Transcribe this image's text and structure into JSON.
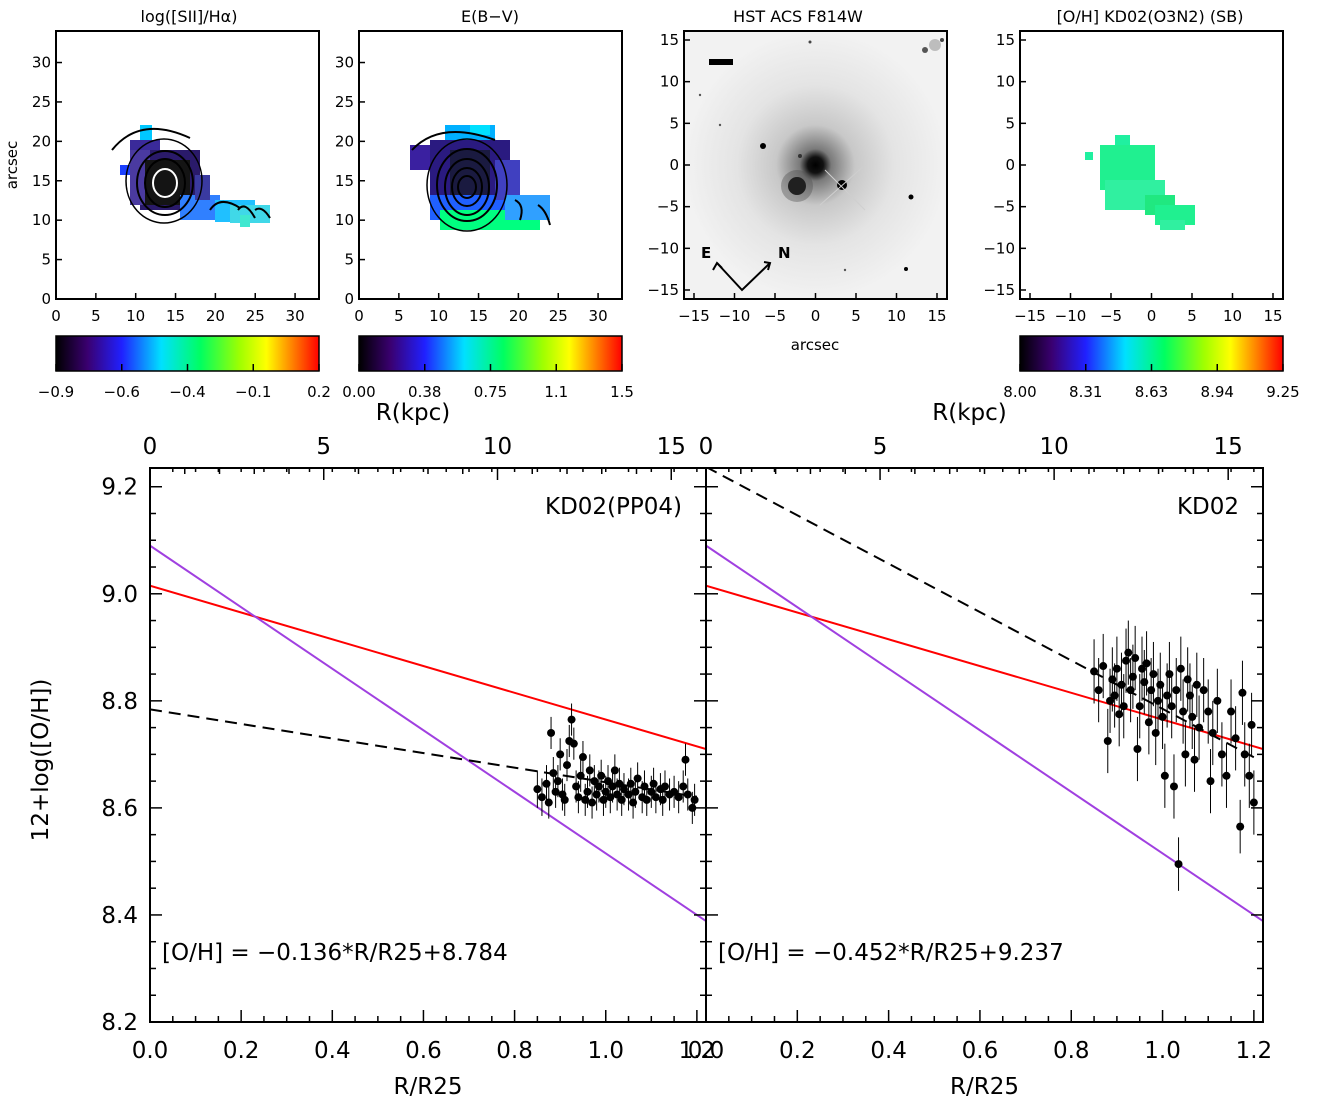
{
  "panels": {
    "sii": {
      "title": "log([SII]/Hα)",
      "ylabel": "arcsec",
      "xticks": [
        "0",
        "5",
        "10",
        "15",
        "20",
        "25",
        "30"
      ],
      "yticks": [
        "0",
        "5",
        "10",
        "15",
        "20",
        "25",
        "30"
      ],
      "colorbar_ticks": [
        "−0.9",
        "−0.6",
        "−0.4",
        "−0.1",
        "0.2"
      ]
    },
    "ebv": {
      "title": "E(B−V)",
      "xticks": [
        "0",
        "5",
        "10",
        "15",
        "20",
        "25",
        "30"
      ],
      "yticks": [
        "0",
        "5",
        "10",
        "15",
        "20",
        "25",
        "30"
      ],
      "colorbar_ticks": [
        "0.00",
        "0.38",
        "0.75",
        "1.1",
        "1.5"
      ]
    },
    "hst": {
      "title": "HST ACS F814W",
      "xlabel": "arcsec",
      "xticks": [
        "−15",
        "−10",
        "−5",
        "0",
        "5",
        "10",
        "15"
      ],
      "yticks": [
        "15",
        "10",
        "5",
        "0",
        "−5",
        "−10",
        "−15"
      ],
      "compass_e": "E",
      "compass_n": "N"
    },
    "oh": {
      "title": "[O/H] KD02(O3N2) (SB)",
      "xticks": [
        "−15",
        "−10",
        "−5",
        "0",
        "5",
        "10",
        "15"
      ],
      "yticks": [
        "15",
        "10",
        "5",
        "0",
        "−5",
        "−10",
        "−15"
      ],
      "colorbar_ticks": [
        "8.00",
        "8.31",
        "8.63",
        "8.94",
        "9.25"
      ]
    }
  },
  "chart_data": [
    {
      "type": "scatter",
      "label": "KD02(PP04)",
      "xlabel": "R/R25",
      "ylabel": "12+log([O/H])",
      "top_xlabel": "R(kpc)",
      "xlim": [
        0.0,
        1.22
      ],
      "ylim": [
        8.2,
        9.25
      ],
      "xticks": [
        "0.0",
        "0.2",
        "0.4",
        "0.6",
        "0.8",
        "1.0",
        "1.2"
      ],
      "yticks": [
        "8.2",
        "8.4",
        "8.6",
        "8.8",
        "9.0",
        "9.2"
      ],
      "top_xticks": [
        "0",
        "5",
        "10",
        "15"
      ],
      "fit_text": "[O/H] = −0.136*R/R25+8.784",
      "fit": {
        "slope": -0.136,
        "intercept": 8.784,
        "style": "dashed",
        "color": "#000000"
      },
      "reference_lines": [
        {
          "slope": -0.25,
          "intercept": 9.015,
          "color": "#ff0000"
        },
        {
          "slope": -0.575,
          "intercept": 9.09,
          "color": "#a040e0"
        }
      ],
      "points": [
        [
          0.85,
          8.635,
          0.035
        ],
        [
          0.86,
          8.62,
          0.035
        ],
        [
          0.87,
          8.645,
          0.035
        ],
        [
          0.875,
          8.61,
          0.03
        ],
        [
          0.88,
          8.74,
          0.03
        ],
        [
          0.885,
          8.665,
          0.03
        ],
        [
          0.89,
          8.63,
          0.03
        ],
        [
          0.895,
          8.65,
          0.03
        ],
        [
          0.9,
          8.7,
          0.03
        ],
        [
          0.905,
          8.625,
          0.03
        ],
        [
          0.91,
          8.615,
          0.03
        ],
        [
          0.915,
          8.68,
          0.03
        ],
        [
          0.92,
          8.725,
          0.03
        ],
        [
          0.925,
          8.765,
          0.03
        ],
        [
          0.93,
          8.72,
          0.03
        ],
        [
          0.935,
          8.64,
          0.03
        ],
        [
          0.94,
          8.62,
          0.03
        ],
        [
          0.945,
          8.66,
          0.03
        ],
        [
          0.95,
          8.695,
          0.03
        ],
        [
          0.955,
          8.615,
          0.03
        ],
        [
          0.96,
          8.63,
          0.03
        ],
        [
          0.965,
          8.67,
          0.03
        ],
        [
          0.97,
          8.61,
          0.03
        ],
        [
          0.975,
          8.65,
          0.03
        ],
        [
          0.98,
          8.625,
          0.03
        ],
        [
          0.985,
          8.64,
          0.03
        ],
        [
          0.99,
          8.66,
          0.03
        ],
        [
          0.995,
          8.615,
          0.03
        ],
        [
          1.0,
          8.63,
          0.03
        ],
        [
          1.005,
          8.65,
          0.03
        ],
        [
          1.01,
          8.62,
          0.03
        ],
        [
          1.015,
          8.64,
          0.03
        ],
        [
          1.02,
          8.67,
          0.03
        ],
        [
          1.025,
          8.625,
          0.03
        ],
        [
          1.03,
          8.645,
          0.03
        ],
        [
          1.035,
          8.615,
          0.03
        ],
        [
          1.04,
          8.635,
          0.03
        ],
        [
          1.05,
          8.625,
          0.03
        ],
        [
          1.055,
          8.645,
          0.03
        ],
        [
          1.06,
          8.61,
          0.03
        ],
        [
          1.065,
          8.63,
          0.03
        ],
        [
          1.07,
          8.655,
          0.03
        ],
        [
          1.08,
          8.62,
          0.03
        ],
        [
          1.085,
          8.64,
          0.03
        ],
        [
          1.09,
          8.615,
          0.03
        ],
        [
          1.1,
          8.63,
          0.03
        ],
        [
          1.105,
          8.645,
          0.03
        ],
        [
          1.11,
          8.62,
          0.03
        ],
        [
          1.12,
          8.635,
          0.03
        ],
        [
          1.125,
          8.615,
          0.03
        ],
        [
          1.13,
          8.64,
          0.03
        ],
        [
          1.14,
          8.625,
          0.03
        ],
        [
          1.15,
          8.63,
          0.03
        ],
        [
          1.16,
          8.62,
          0.03
        ],
        [
          1.17,
          8.64,
          0.03
        ],
        [
          1.175,
          8.69,
          0.03
        ],
        [
          1.18,
          8.625,
          0.03
        ],
        [
          1.19,
          8.6,
          0.03
        ],
        [
          1.195,
          8.615,
          0.03
        ]
      ]
    },
    {
      "type": "scatter",
      "label": "KD02",
      "xlabel": "R/R25",
      "top_xlabel": "R(kpc)",
      "xlim": [
        0.0,
        1.22
      ],
      "ylim": [
        8.2,
        9.25
      ],
      "xticks": [
        "0.0",
        "0.2",
        "0.4",
        "0.6",
        "0.8",
        "1.0",
        "1.2"
      ],
      "top_xticks": [
        "0",
        "5",
        "10",
        "15"
      ],
      "fit_text": "[O/H] = −0.452*R/R25+9.237",
      "fit": {
        "slope": -0.452,
        "intercept": 9.237,
        "style": "dashed",
        "color": "#000000"
      },
      "reference_lines": [
        {
          "slope": -0.25,
          "intercept": 9.015,
          "color": "#ff0000"
        },
        {
          "slope": -0.575,
          "intercept": 9.09,
          "color": "#a040e0"
        }
      ],
      "points": [
        [
          0.85,
          8.855,
          0.06
        ],
        [
          0.86,
          8.82,
          0.06
        ],
        [
          0.87,
          8.865,
          0.06
        ],
        [
          0.88,
          8.725,
          0.06
        ],
        [
          0.885,
          8.8,
          0.06
        ],
        [
          0.89,
          8.84,
          0.06
        ],
        [
          0.895,
          8.81,
          0.06
        ],
        [
          0.9,
          8.86,
          0.06
        ],
        [
          0.905,
          8.775,
          0.06
        ],
        [
          0.91,
          8.83,
          0.06
        ],
        [
          0.915,
          8.79,
          0.06
        ],
        [
          0.92,
          8.875,
          0.06
        ],
        [
          0.925,
          8.89,
          0.06
        ],
        [
          0.93,
          8.82,
          0.06
        ],
        [
          0.935,
          8.845,
          0.06
        ],
        [
          0.94,
          8.88,
          0.06
        ],
        [
          0.945,
          8.71,
          0.06
        ],
        [
          0.95,
          8.79,
          0.06
        ],
        [
          0.955,
          8.86,
          0.06
        ],
        [
          0.96,
          8.835,
          0.06
        ],
        [
          0.965,
          8.87,
          0.06
        ],
        [
          0.97,
          8.76,
          0.06
        ],
        [
          0.975,
          8.82,
          0.06
        ],
        [
          0.98,
          8.85,
          0.06
        ],
        [
          0.985,
          8.74,
          0.06
        ],
        [
          0.99,
          8.8,
          0.06
        ],
        [
          0.995,
          8.83,
          0.06
        ],
        [
          1.0,
          8.77,
          0.06
        ],
        [
          1.005,
          8.66,
          0.06
        ],
        [
          1.01,
          8.81,
          0.06
        ],
        [
          1.015,
          8.85,
          0.06
        ],
        [
          1.02,
          8.79,
          0.06
        ],
        [
          1.025,
          8.64,
          0.06
        ],
        [
          1.03,
          8.82,
          0.06
        ],
        [
          1.035,
          8.495,
          0.05
        ],
        [
          1.04,
          8.86,
          0.06
        ],
        [
          1.045,
          8.78,
          0.06
        ],
        [
          1.05,
          8.7,
          0.06
        ],
        [
          1.055,
          8.84,
          0.06
        ],
        [
          1.06,
          8.81,
          0.06
        ],
        [
          1.065,
          8.77,
          0.06
        ],
        [
          1.07,
          8.69,
          0.06
        ],
        [
          1.075,
          8.83,
          0.06
        ],
        [
          1.08,
          8.75,
          0.06
        ],
        [
          1.09,
          8.82,
          0.06
        ],
        [
          1.1,
          8.78,
          0.06
        ],
        [
          1.105,
          8.65,
          0.06
        ],
        [
          1.11,
          8.74,
          0.06
        ],
        [
          1.12,
          8.8,
          0.06
        ],
        [
          1.13,
          8.7,
          0.06
        ],
        [
          1.14,
          8.66,
          0.06
        ],
        [
          1.15,
          8.78,
          0.06
        ],
        [
          1.16,
          8.73,
          0.06
        ],
        [
          1.17,
          8.565,
          0.05
        ],
        [
          1.175,
          8.815,
          0.06
        ],
        [
          1.18,
          8.7,
          0.06
        ],
        [
          1.19,
          8.66,
          0.06
        ],
        [
          1.195,
          8.755,
          0.06
        ],
        [
          1.2,
          8.61,
          0.06
        ]
      ]
    }
  ]
}
